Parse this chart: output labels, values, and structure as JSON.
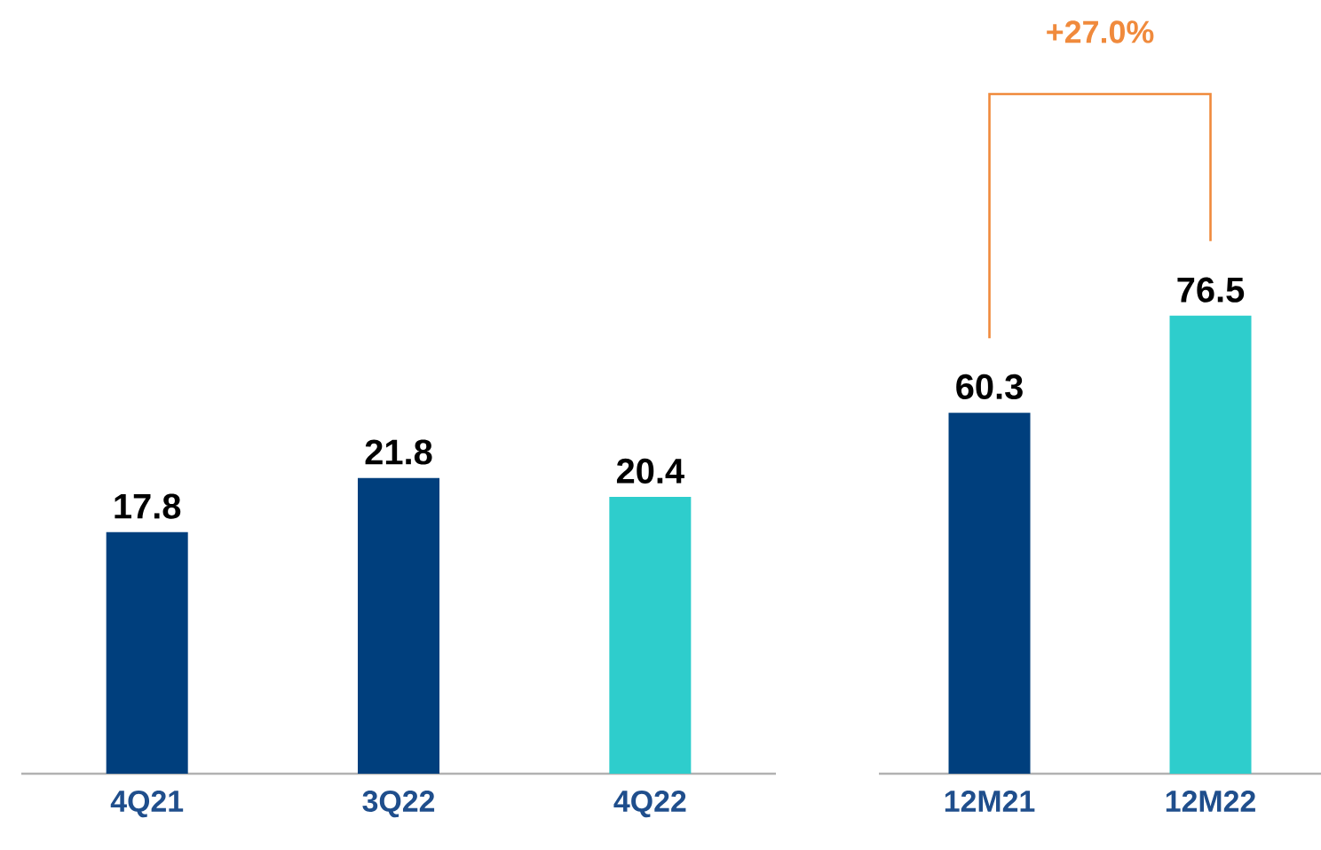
{
  "chart_data": [
    {
      "type": "bar",
      "categories": [
        "4Q21",
        "3Q22",
        "4Q22"
      ],
      "values": [
        17.8,
        21.8,
        20.4
      ],
      "colors": [
        "#003f7d",
        "#003f7d",
        "#2ecdcc"
      ],
      "data_labels": true
    },
    {
      "type": "bar",
      "categories": [
        "12M21",
        "12M22"
      ],
      "values": [
        60.3,
        76.5
      ],
      "colors": [
        "#003f7d",
        "#2ecdcc"
      ],
      "data_labels": true,
      "annotations": [
        "+27.0%"
      ]
    }
  ]
}
